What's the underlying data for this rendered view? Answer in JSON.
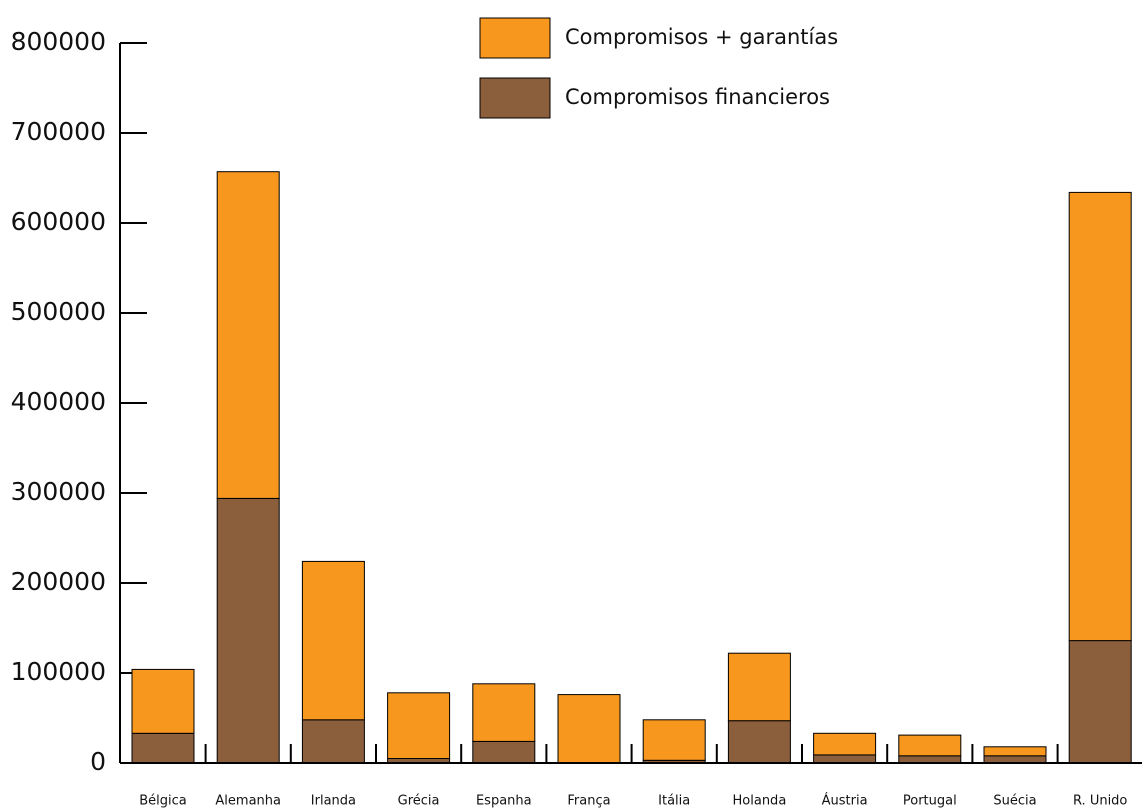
{
  "chart_data": {
    "type": "stacked_bar",
    "categories": [
      "Bélgica",
      "Alemanha",
      "Irlanda",
      "Grécia",
      "Espanha",
      "França",
      "Itália",
      "Holanda",
      "Áustria",
      "Portugal",
      "Suécia",
      "R. Unido"
    ],
    "series": [
      {
        "name": "Compromisos financieros",
        "color": "#8b5e3c",
        "values": [
          33000,
          294000,
          48000,
          5000,
          24000,
          0,
          3000,
          47000,
          9000,
          8000,
          8000,
          136000
        ]
      },
      {
        "name": "Compromisos + garantías",
        "color": "#f7971e",
        "values": [
          71000,
          363000,
          176000,
          73000,
          64000,
          76000,
          45000,
          75000,
          24000,
          23000,
          10000,
          498000
        ]
      }
    ],
    "ylim": [
      0,
      800000
    ],
    "yticks": [
      0,
      100000,
      200000,
      300000,
      400000,
      500000,
      600000,
      700000,
      800000
    ]
  }
}
